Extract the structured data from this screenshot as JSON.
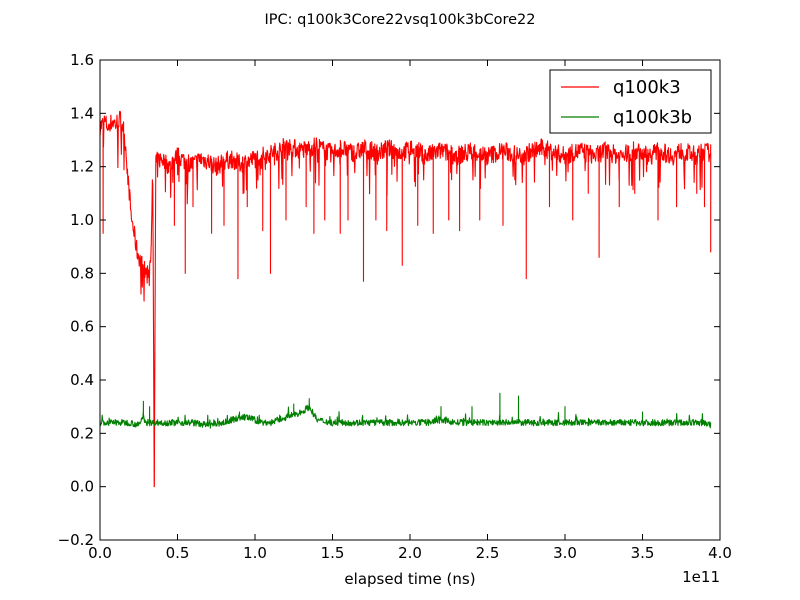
{
  "chart_data": {
    "type": "line",
    "title": "IPC: q100k3Core22vsq100k3bCore22",
    "xlabel": "elapsed time (ns)",
    "ylabel": "",
    "x_offset_label": "1e11",
    "xlim": [
      0.0,
      4.0
    ],
    "ylim": [
      -0.2,
      1.6
    ],
    "x_ticks": [
      "0.0",
      "0.5",
      "1.0",
      "1.5",
      "2.0",
      "2.5",
      "3.0",
      "3.5",
      "4.0"
    ],
    "y_ticks": [
      "−0.2",
      "0.0",
      "0.2",
      "0.4",
      "0.6",
      "0.8",
      "1.0",
      "1.2",
      "1.4",
      "1.6"
    ],
    "grid": false,
    "legend_position": "top-right",
    "series": [
      {
        "name": "q100k3",
        "color": "#ff0000",
        "x": [
          0.0,
          0.02,
          0.03,
          0.05,
          0.08,
          0.1,
          0.13,
          0.15,
          0.17,
          0.18,
          0.19,
          0.2,
          0.22,
          0.24,
          0.26,
          0.28,
          0.3,
          0.32,
          0.33,
          0.34,
          0.35,
          0.36,
          0.4,
          0.45,
          0.5,
          0.55,
          0.6,
          0.65,
          0.7,
          0.75,
          0.8,
          0.85,
          0.9,
          0.95,
          1.0,
          1.05,
          1.1,
          1.15,
          1.2,
          1.25,
          1.3,
          1.35,
          1.4,
          1.45,
          1.5,
          1.55,
          1.6,
          1.65,
          1.7,
          1.75,
          1.8,
          1.85,
          1.9,
          1.95,
          2.0,
          2.05,
          2.1,
          2.15,
          2.2,
          2.25,
          2.3,
          2.35,
          2.4,
          2.45,
          2.5,
          2.55,
          2.6,
          2.65,
          2.7,
          2.75,
          2.8,
          2.85,
          2.9,
          2.95,
          3.0,
          3.05,
          3.1,
          3.15,
          3.2,
          3.25,
          3.3,
          3.35,
          3.4,
          3.45,
          3.5,
          3.55,
          3.6,
          3.65,
          3.7,
          3.75,
          3.8,
          3.85,
          3.9,
          3.94
        ],
        "values": [
          1.35,
          1.36,
          1.37,
          1.35,
          1.37,
          1.36,
          1.38,
          1.35,
          1.25,
          1.15,
          1.1,
          1.02,
          0.95,
          0.88,
          0.85,
          0.82,
          0.8,
          0.82,
          0.9,
          1.2,
          0.0,
          1.22,
          1.23,
          1.2,
          1.24,
          1.22,
          1.21,
          1.23,
          1.22,
          1.2,
          1.22,
          1.23,
          1.21,
          1.22,
          1.23,
          1.24,
          1.25,
          1.26,
          1.28,
          1.27,
          1.26,
          1.27,
          1.28,
          1.26,
          1.25,
          1.27,
          1.26,
          1.25,
          1.27,
          1.26,
          1.25,
          1.27,
          1.26,
          1.25,
          1.27,
          1.26,
          1.24,
          1.25,
          1.26,
          1.25,
          1.24,
          1.25,
          1.26,
          1.25,
          1.24,
          1.25,
          1.26,
          1.25,
          1.24,
          1.25,
          1.26,
          1.27,
          1.26,
          1.25,
          1.24,
          1.25,
          1.26,
          1.25,
          1.24,
          1.26,
          1.25,
          1.24,
          1.25,
          1.26,
          1.25,
          1.24,
          1.26,
          1.25,
          1.24,
          1.26,
          1.25,
          1.24,
          1.26,
          1.25
        ],
        "dips": [
          [
            0.02,
            0.95
          ],
          [
            0.33,
            0.9
          ],
          [
            0.35,
            0.0
          ],
          [
            0.48,
            0.98
          ],
          [
            0.55,
            0.8
          ],
          [
            0.6,
            1.05
          ],
          [
            0.72,
            0.95
          ],
          [
            0.8,
            0.98
          ],
          [
            0.89,
            0.78
          ],
          [
            0.95,
            1.05
          ],
          [
            1.05,
            0.96
          ],
          [
            1.1,
            0.8
          ],
          [
            1.2,
            1.0
          ],
          [
            1.33,
            1.05
          ],
          [
            1.38,
            0.95
          ],
          [
            1.45,
            1.0
          ],
          [
            1.55,
            0.95
          ],
          [
            1.6,
            1.0
          ],
          [
            1.7,
            0.77
          ],
          [
            1.78,
            1.0
          ],
          [
            1.85,
            0.96
          ],
          [
            1.95,
            0.83
          ],
          [
            2.05,
            0.98
          ],
          [
            2.15,
            0.95
          ],
          [
            2.25,
            1.0
          ],
          [
            2.32,
            0.96
          ],
          [
            2.45,
            1.0
          ],
          [
            2.6,
            0.98
          ],
          [
            2.75,
            0.78
          ],
          [
            2.9,
            1.05
          ],
          [
            3.05,
            1.0
          ],
          [
            3.15,
            1.1
          ],
          [
            3.22,
            0.86
          ],
          [
            3.35,
            1.05
          ],
          [
            3.45,
            1.1
          ],
          [
            3.6,
            1.0
          ],
          [
            3.72,
            1.05
          ],
          [
            3.85,
            1.1
          ],
          [
            3.9,
            1.05
          ],
          [
            3.94,
            0.88
          ]
        ]
      },
      {
        "name": "q100k3b",
        "color": "#008000",
        "x": [
          0.0,
          0.1,
          0.2,
          0.25,
          0.28,
          0.3,
          0.4,
          0.5,
          0.6,
          0.7,
          0.8,
          0.85,
          0.9,
          0.95,
          1.0,
          1.05,
          1.1,
          1.15,
          1.2,
          1.25,
          1.3,
          1.35,
          1.4,
          1.5,
          1.6,
          1.7,
          1.8,
          1.9,
          2.0,
          2.1,
          2.2,
          2.3,
          2.4,
          2.5,
          2.6,
          2.7,
          2.8,
          2.9,
          3.0,
          3.1,
          3.2,
          3.3,
          3.4,
          3.5,
          3.6,
          3.7,
          3.8,
          3.9,
          3.94
        ],
        "values": [
          0.24,
          0.24,
          0.24,
          0.23,
          0.26,
          0.24,
          0.24,
          0.24,
          0.24,
          0.23,
          0.24,
          0.25,
          0.26,
          0.26,
          0.25,
          0.24,
          0.24,
          0.25,
          0.26,
          0.27,
          0.28,
          0.3,
          0.25,
          0.24,
          0.24,
          0.24,
          0.24,
          0.24,
          0.24,
          0.24,
          0.25,
          0.24,
          0.24,
          0.24,
          0.24,
          0.24,
          0.24,
          0.24,
          0.24,
          0.24,
          0.24,
          0.24,
          0.24,
          0.24,
          0.24,
          0.24,
          0.24,
          0.24,
          0.23
        ],
        "spikes": [
          [
            0.28,
            0.32
          ],
          [
            0.32,
            0.3
          ],
          [
            0.9,
            0.28
          ],
          [
            1.25,
            0.31
          ],
          [
            1.35,
            0.33
          ],
          [
            2.2,
            0.3
          ],
          [
            2.4,
            0.3
          ],
          [
            2.58,
            0.35
          ],
          [
            2.7,
            0.34
          ],
          [
            3.0,
            0.3
          ],
          [
            3.5,
            0.28
          ]
        ]
      }
    ]
  }
}
